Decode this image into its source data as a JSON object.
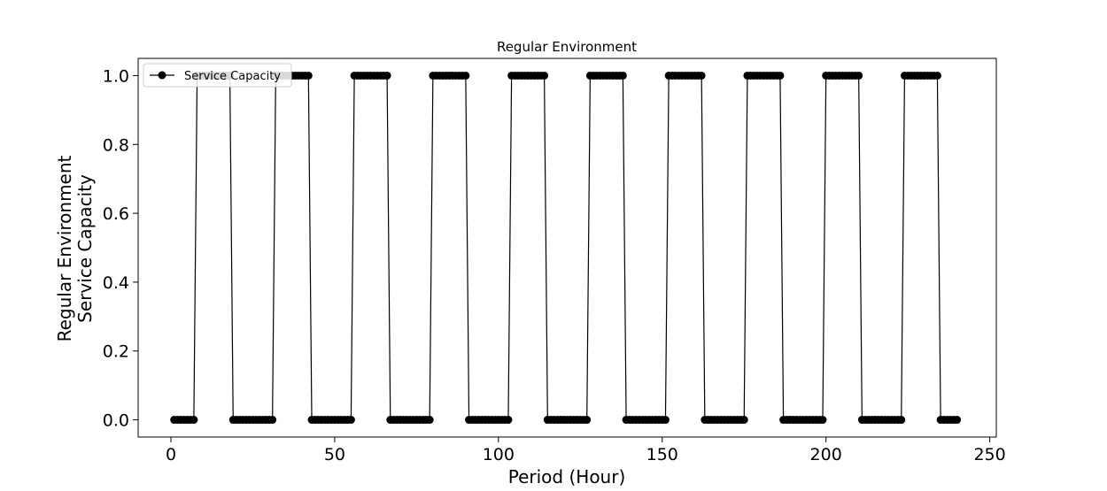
{
  "chart_data": {
    "type": "line",
    "title": "Regular Environment",
    "xlabel": "Period (Hour)",
    "ylabel_lines": [
      "Regular Environment",
      "Service Capacity"
    ],
    "xlim": [
      -10,
      252
    ],
    "ylim": [
      -0.05,
      1.05
    ],
    "xticks": [
      0,
      50,
      100,
      150,
      200,
      250
    ],
    "yticks": [
      0.0,
      0.2,
      0.4,
      0.6,
      0.8,
      1.0
    ],
    "xtick_labels": [
      "0",
      "50",
      "100",
      "150",
      "200",
      "250"
    ],
    "ytick_labels": [
      "0.0",
      "0.2",
      "0.4",
      "0.6",
      "0.8",
      "1.0"
    ],
    "grid": false,
    "legend": {
      "placement": "top-left",
      "entries": [
        "Service Capacity"
      ]
    },
    "series": [
      {
        "name": "Service Capacity",
        "color": "#000000",
        "marker": "circle",
        "x": [
          1,
          2,
          3,
          4,
          5,
          6,
          7,
          8,
          9,
          10,
          11,
          12,
          13,
          14,
          15,
          16,
          17,
          18,
          19,
          20,
          21,
          22,
          23,
          24,
          25,
          26,
          27,
          28,
          29,
          30,
          31,
          32,
          33,
          34,
          35,
          36,
          37,
          38,
          39,
          40,
          41,
          42,
          43,
          44,
          45,
          46,
          47,
          48,
          49,
          50,
          51,
          52,
          53,
          54,
          55,
          56,
          57,
          58,
          59,
          60,
          61,
          62,
          63,
          64,
          65,
          66,
          67,
          68,
          69,
          70,
          71,
          72,
          73,
          74,
          75,
          76,
          77,
          78,
          79,
          80,
          81,
          82,
          83,
          84,
          85,
          86,
          87,
          88,
          89,
          90,
          91,
          92,
          93,
          94,
          95,
          96,
          97,
          98,
          99,
          100,
          101,
          102,
          103,
          104,
          105,
          106,
          107,
          108,
          109,
          110,
          111,
          112,
          113,
          114,
          115,
          116,
          117,
          118,
          119,
          120,
          121,
          122,
          123,
          124,
          125,
          126,
          127,
          128,
          129,
          130,
          131,
          132,
          133,
          134,
          135,
          136,
          137,
          138,
          139,
          140,
          141,
          142,
          143,
          144,
          145,
          146,
          147,
          148,
          149,
          150,
          151,
          152,
          153,
          154,
          155,
          156,
          157,
          158,
          159,
          160,
          161,
          162,
          163,
          164,
          165,
          166,
          167,
          168,
          169,
          170,
          171,
          172,
          173,
          174,
          175,
          176,
          177,
          178,
          179,
          180,
          181,
          182,
          183,
          184,
          185,
          186,
          187,
          188,
          189,
          190,
          191,
          192,
          193,
          194,
          195,
          196,
          197,
          198,
          199,
          200,
          201,
          202,
          203,
          204,
          205,
          206,
          207,
          208,
          209,
          210,
          211,
          212,
          213,
          214,
          215,
          216,
          217,
          218,
          219,
          220,
          221,
          222,
          223,
          224,
          225,
          226,
          227,
          228,
          229,
          230,
          231,
          232,
          233,
          234,
          235,
          236,
          237,
          238,
          239,
          240
        ],
        "y": [
          0,
          0,
          0,
          0,
          0,
          0,
          0,
          1,
          1,
          1,
          1,
          1,
          1,
          1,
          1,
          1,
          1,
          1,
          0,
          0,
          0,
          0,
          0,
          0,
          0,
          0,
          0,
          0,
          0,
          0,
          0,
          1,
          1,
          1,
          1,
          1,
          1,
          1,
          1,
          1,
          1,
          1,
          0,
          0,
          0,
          0,
          0,
          0,
          0,
          0,
          0,
          0,
          0,
          0,
          0,
          1,
          1,
          1,
          1,
          1,
          1,
          1,
          1,
          1,
          1,
          1,
          0,
          0,
          0,
          0,
          0,
          0,
          0,
          0,
          0,
          0,
          0,
          0,
          0,
          1,
          1,
          1,
          1,
          1,
          1,
          1,
          1,
          1,
          1,
          1,
          0,
          0,
          0,
          0,
          0,
          0,
          0,
          0,
          0,
          0,
          0,
          0,
          0,
          1,
          1,
          1,
          1,
          1,
          1,
          1,
          1,
          1,
          1,
          1,
          0,
          0,
          0,
          0,
          0,
          0,
          0,
          0,
          0,
          0,
          0,
          0,
          0,
          1,
          1,
          1,
          1,
          1,
          1,
          1,
          1,
          1,
          1,
          1,
          0,
          0,
          0,
          0,
          0,
          0,
          0,
          0,
          0,
          0,
          0,
          0,
          0,
          1,
          1,
          1,
          1,
          1,
          1,
          1,
          1,
          1,
          1,
          1,
          0,
          0,
          0,
          0,
          0,
          0,
          0,
          0,
          0,
          0,
          0,
          0,
          0,
          1,
          1,
          1,
          1,
          1,
          1,
          1,
          1,
          1,
          1,
          1,
          0,
          0,
          0,
          0,
          0,
          0,
          0,
          0,
          0,
          0,
          0,
          0,
          0,
          1,
          1,
          1,
          1,
          1,
          1,
          1,
          1,
          1,
          1,
          1,
          0,
          0,
          0,
          0,
          0,
          0,
          0,
          0,
          0,
          0,
          0,
          0,
          0,
          1,
          1,
          1,
          1,
          1,
          1,
          1,
          1,
          1,
          1,
          1,
          0,
          0,
          0,
          0,
          0,
          0
        ]
      }
    ]
  }
}
